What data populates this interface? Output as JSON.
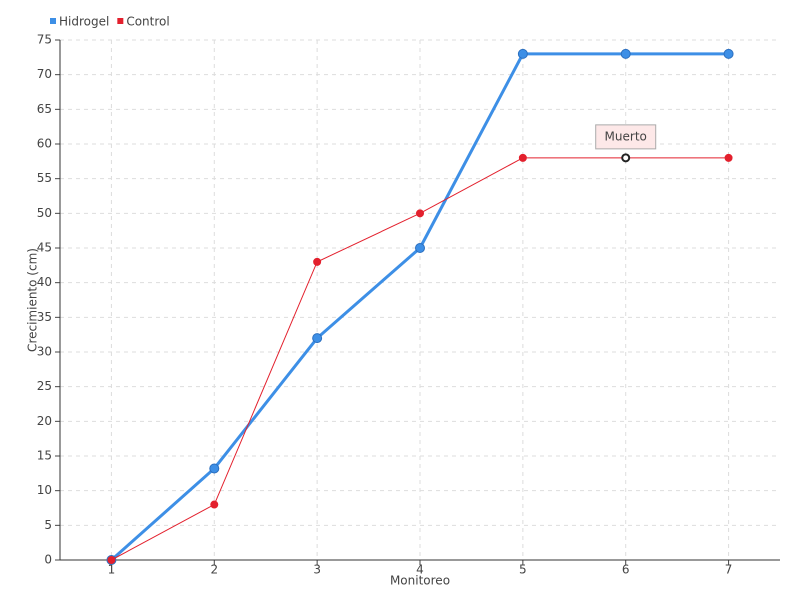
{
  "chart_data": {
    "type": "line",
    "x_label": "Monitoreo",
    "y_label": "Crecimiento (cm)",
    "x": [
      1,
      2,
      3,
      4,
      5,
      6,
      7
    ],
    "xlim": [
      0.5,
      7.5
    ],
    "xticks": [
      1,
      2,
      3,
      4,
      5,
      6,
      7
    ],
    "ylim": [
      0,
      75
    ],
    "yticks": [
      0,
      5,
      10,
      15,
      20,
      25,
      30,
      35,
      40,
      45,
      50,
      55,
      60,
      65,
      70,
      75
    ],
    "grid": true,
    "legend": "top-left",
    "series": [
      {
        "name": "Hidrogel",
        "color": "#3d8fe6",
        "values": [
          0,
          13.2,
          32,
          45,
          73,
          73,
          73
        ]
      },
      {
        "name": "Control",
        "color": "#e3202d",
        "values": [
          0,
          8,
          43,
          50,
          58,
          58,
          58
        ]
      }
    ],
    "annotations": [
      {
        "text": "Muerto",
        "x": 6,
        "y": 58
      }
    ]
  }
}
